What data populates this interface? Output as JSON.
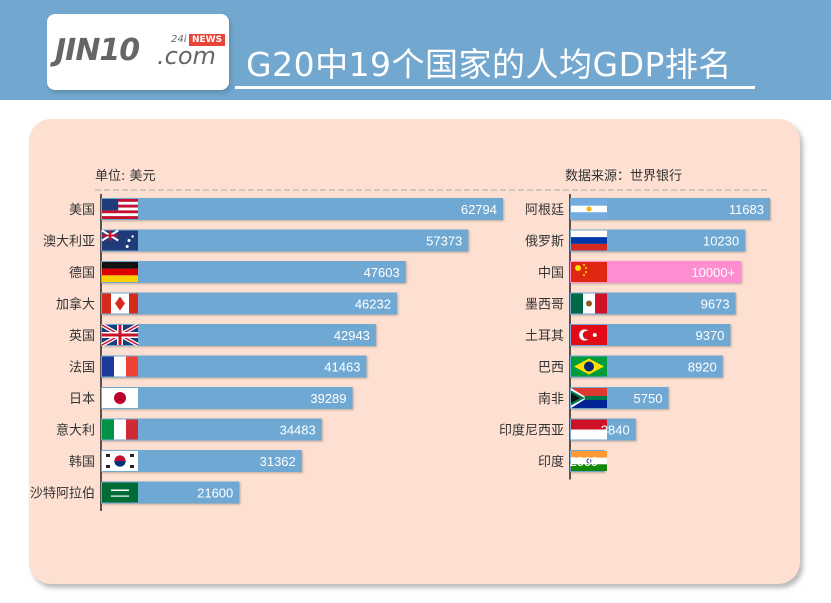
{
  "header": {
    "logo_text": "JIN10",
    "logo_com": ".com",
    "logo_num": "24i",
    "logo_news": "NEWS",
    "title": "G20中19个国家的人均GDP排名"
  },
  "chart_data": {
    "type": "bar",
    "orientation": "horizontal",
    "unit_label": "单位: 美元",
    "source_label": "数据来源：世界银行",
    "title": "G20中19个国家的人均GDP排名",
    "left_group": {
      "categories": [
        "美国",
        "澳大利亚",
        "德国",
        "加拿大",
        "英国",
        "法国",
        "日本",
        "意大利",
        "韩国",
        "沙特阿拉伯"
      ],
      "values": [
        62794,
        57373,
        47603,
        46232,
        42943,
        41463,
        39289,
        34483,
        31362,
        21600
      ],
      "value_labels": [
        "62794",
        "57373",
        "47603",
        "46232",
        "42943",
        "41463",
        "39289",
        "34483",
        "31362",
        "21600"
      ],
      "flags": [
        "usa-flag",
        "australia-flag",
        "germany-flag",
        "canada-flag",
        "uk-flag",
        "france-flag",
        "japan-flag",
        "italy-flag",
        "korea-flag",
        "saudi-flag"
      ]
    },
    "right_group": {
      "categories": [
        "阿根廷",
        "俄罗斯",
        "中国",
        "墨西哥",
        "土耳其",
        "巴西",
        "南非",
        "印度尼西亚",
        "印度"
      ],
      "values": [
        11683,
        10230,
        10000,
        9673,
        9370,
        8920,
        5750,
        3840,
        2009
      ],
      "value_labels": [
        "11683",
        "10230",
        "10000+",
        "9673",
        "9370",
        "8920",
        "5750",
        "3840",
        "2009"
      ],
      "flags": [
        "argentina-flag",
        "russia-flag",
        "china-flag",
        "mexico-flag",
        "turkey-flag",
        "brazil-flag",
        "south-africa-flag",
        "indonesia-flag",
        "india-flag"
      ],
      "highlight": "中国"
    },
    "colors": {
      "bar": "#6fa9d3",
      "highlight_bar": "#ff8ed0",
      "highlight_label": "#e53935",
      "axis": "#222222"
    }
  }
}
